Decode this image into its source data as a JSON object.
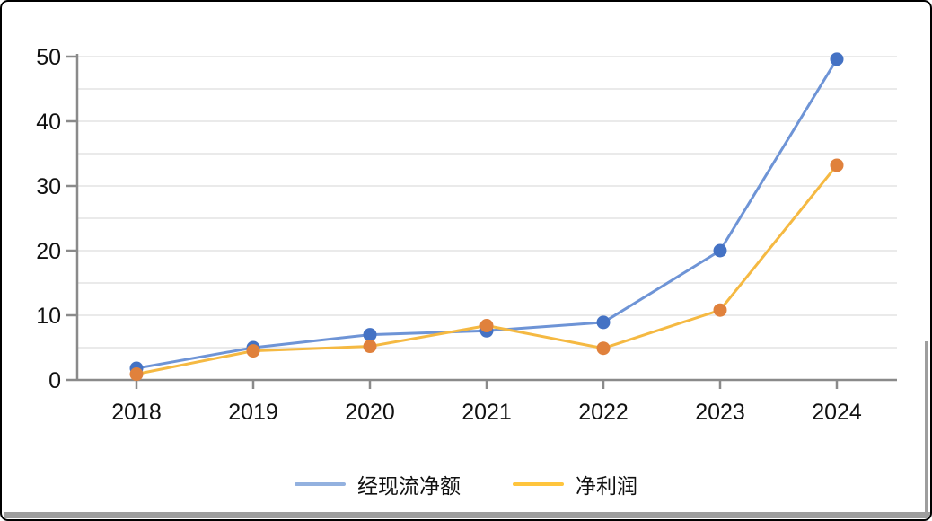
{
  "chart_data": {
    "type": "line",
    "categories": [
      "2018",
      "2019",
      "2020",
      "2021",
      "2022",
      "2023",
      "2024"
    ],
    "series": [
      {
        "name": "经现流净额",
        "values": [
          1.8,
          5.0,
          7.0,
          7.6,
          8.9,
          20.0,
          49.6
        ],
        "line_color": "#6E94D6",
        "marker_color": "#4472C4",
        "legend_line_color": "#93B1DF"
      },
      {
        "name": "净利润",
        "values": [
          0.9,
          4.5,
          5.2,
          8.4,
          4.9,
          10.8,
          33.2
        ],
        "line_color": "#F5B942",
        "marker_color": "#E0813C",
        "legend_line_color": "#FFC53D"
      }
    ],
    "title": "",
    "xlabel": "",
    "ylabel": "",
    "ylim": [
      0,
      50
    ],
    "y_ticks": [
      0,
      10,
      20,
      30,
      40,
      50
    ],
    "grid_step": 5,
    "grid": true,
    "legend_position": "bottom"
  },
  "colors": {
    "grid": "#E3E3E3",
    "axis": "#8A8A8A",
    "tick_text": "#111111",
    "background": "#FFFFFF",
    "border": "#000000",
    "scrollbar": "#9E9E9E"
  }
}
